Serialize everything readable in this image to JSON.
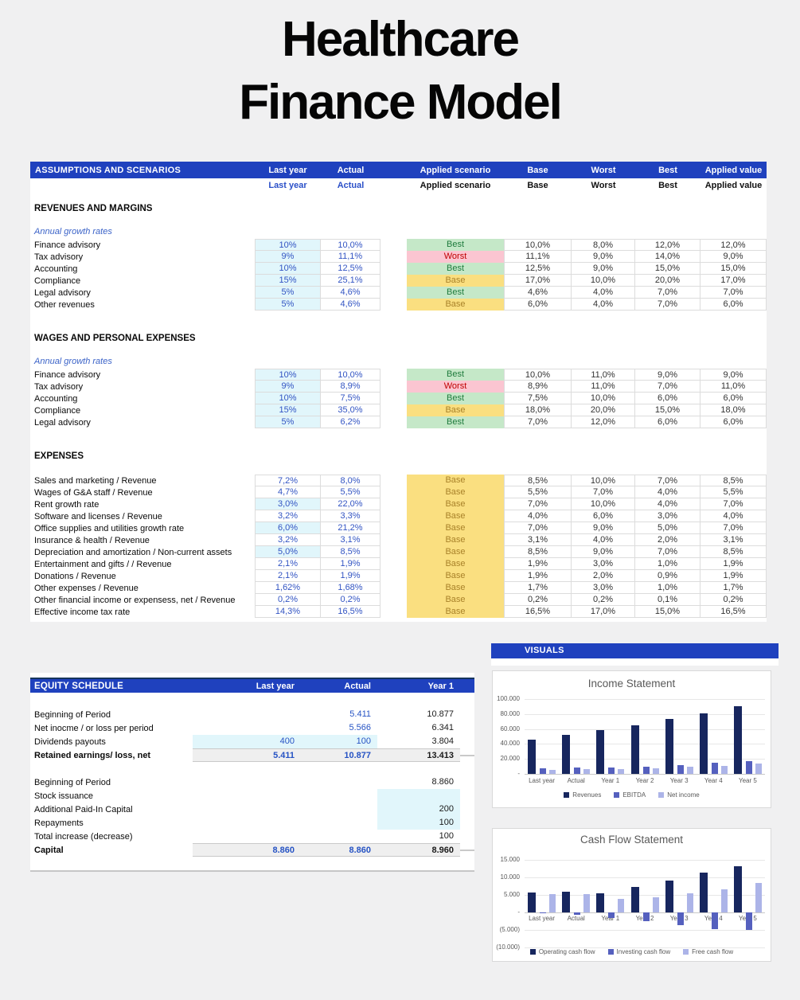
{
  "title": {
    "line1": "Healthcare",
    "line2": "Finance Model"
  },
  "colors": {
    "header_blue": "#1F41BE",
    "accent_navy": "#17365D",
    "input_cyan": "#E1F6FB",
    "value_blue": "#3254C3",
    "best_bg": "#C5E8C8",
    "best_text": "#1F7B3D",
    "worst_bg": "#FBC5D1",
    "worst_text": "#C00000",
    "base_bg": "#FADF80",
    "base_text": "#A98229",
    "series_dark": "#17265E",
    "series_mid": "#5560BE",
    "series_light": "#ACB4E8"
  },
  "assumptions": {
    "header": "ASSUMPTIONS AND SCENARIOS",
    "columns": [
      "Last year",
      "Actual",
      "Applied scenario",
      "Base",
      "Worst",
      "Best",
      "Applied value"
    ],
    "sections": [
      {
        "name": "REVENUES AND MARGINS",
        "subtitle": "Annual growth rates",
        "merged_scenario": false,
        "rows": [
          {
            "label": "Finance advisory",
            "last_year": "10%",
            "actual": "10,0%",
            "scenario": "Best",
            "base": "10,0%",
            "worst": "8,0%",
            "best": "12,0%",
            "applied": "12,0%",
            "input": true
          },
          {
            "label": "Tax advisory",
            "last_year": "9%",
            "actual": "11,1%",
            "scenario": "Worst",
            "base": "11,1%",
            "worst": "9,0%",
            "best": "14,0%",
            "applied": "9,0%",
            "input": true
          },
          {
            "label": "Accounting",
            "last_year": "10%",
            "actual": "12,5%",
            "scenario": "Best",
            "base": "12,5%",
            "worst": "9,0%",
            "best": "15,0%",
            "applied": "15,0%",
            "input": true
          },
          {
            "label": "Compliance",
            "last_year": "15%",
            "actual": "25,1%",
            "scenario": "Base",
            "base": "17,0%",
            "worst": "10,0%",
            "best": "20,0%",
            "applied": "17,0%",
            "input": true
          },
          {
            "label": "Legal advisory",
            "last_year": "5%",
            "actual": "4,6%",
            "scenario": "Best",
            "base": "4,6%",
            "worst": "4,0%",
            "best": "7,0%",
            "applied": "7,0%",
            "input": true
          },
          {
            "label": "Other revenues",
            "last_year": "5%",
            "actual": "4,6%",
            "scenario": "Base",
            "base": "6,0%",
            "worst": "4,0%",
            "best": "7,0%",
            "applied": "6,0%",
            "input": true
          }
        ]
      },
      {
        "name": "WAGES AND PERSONAL EXPENSES",
        "subtitle": "Annual growth rates",
        "merged_scenario": false,
        "rows": [
          {
            "label": "Finance advisory",
            "last_year": "10%",
            "actual": "10,0%",
            "scenario": "Best",
            "base": "10,0%",
            "worst": "11,0%",
            "best": "9,0%",
            "applied": "9,0%",
            "input": true
          },
          {
            "label": "Tax advisory",
            "last_year": "9%",
            "actual": "8,9%",
            "scenario": "Worst",
            "base": "8,9%",
            "worst": "11,0%",
            "best": "7,0%",
            "applied": "11,0%",
            "input": true
          },
          {
            "label": "Accounting",
            "last_year": "10%",
            "actual": "7,5%",
            "scenario": "Best",
            "base": "7,5%",
            "worst": "10,0%",
            "best": "6,0%",
            "applied": "6,0%",
            "input": true
          },
          {
            "label": "Compliance",
            "last_year": "15%",
            "actual": "35,0%",
            "scenario": "Base",
            "base": "18,0%",
            "worst": "20,0%",
            "best": "15,0%",
            "applied": "18,0%",
            "input": true
          },
          {
            "label": "Legal advisory",
            "last_year": "5%",
            "actual": "6,2%",
            "scenario": "Best",
            "base": "7,0%",
            "worst": "12,0%",
            "best": "6,0%",
            "applied": "6,0%",
            "input": true
          }
        ]
      },
      {
        "name": "EXPENSES",
        "subtitle": "",
        "merged_scenario": true,
        "rows": [
          {
            "label": "Sales and marketing / Revenue",
            "last_year": "7,2%",
            "actual": "8,0%",
            "scenario": "Base",
            "base": "8,5%",
            "worst": "10,0%",
            "best": "7,0%",
            "applied": "8,5%",
            "input": false
          },
          {
            "label": "Wages of G&A staff / Revenue",
            "last_year": "4,7%",
            "actual": "5,5%",
            "scenario": "Base",
            "base": "5,5%",
            "worst": "7,0%",
            "best": "4,0%",
            "applied": "5,5%",
            "input": false
          },
          {
            "label": "Rent growth rate",
            "last_year": "3,0%",
            "actual": "22,0%",
            "scenario": "Base",
            "base": "7,0%",
            "worst": "10,0%",
            "best": "4,0%",
            "applied": "7,0%",
            "input": true
          },
          {
            "label": "Software and licenses / Revenue",
            "last_year": "3,2%",
            "actual": "3,3%",
            "scenario": "Base",
            "base": "4,0%",
            "worst": "6,0%",
            "best": "3,0%",
            "applied": "4,0%",
            "input": false
          },
          {
            "label": "Office supplies and utilities growth rate",
            "last_year": "6,0%",
            "actual": "21,2%",
            "scenario": "Base",
            "base": "7,0%",
            "worst": "9,0%",
            "best": "5,0%",
            "applied": "7,0%",
            "input": true
          },
          {
            "label": "Insurance & health / Revenue",
            "last_year": "3,2%",
            "actual": "3,1%",
            "scenario": "Base",
            "base": "3,1%",
            "worst": "4,0%",
            "best": "2,0%",
            "applied": "3,1%",
            "input": false
          },
          {
            "label": "Depreciation and amortization / Non-current assets",
            "last_year": "5,0%",
            "actual": "8,5%",
            "scenario": "Base",
            "base": "8,5%",
            "worst": "9,0%",
            "best": "7,0%",
            "applied": "8,5%",
            "input": true
          },
          {
            "label": "Entertainment and gifts / / Revenue",
            "last_year": "2,1%",
            "actual": "1,9%",
            "scenario": "Base",
            "base": "1,9%",
            "worst": "3,0%",
            "best": "1,0%",
            "applied": "1,9%",
            "input": false
          },
          {
            "label": "Donations / Revenue",
            "last_year": "2,1%",
            "actual": "1,9%",
            "scenario": "Base",
            "base": "1,9%",
            "worst": "2,0%",
            "best": "0,9%",
            "applied": "1,9%",
            "input": false
          },
          {
            "label": "Other expenses / Revenue",
            "last_year": "1,62%",
            "actual": "1,68%",
            "scenario": "Base",
            "base": "1,7%",
            "worst": "3,0%",
            "best": "1,0%",
            "applied": "1,7%",
            "input": false
          },
          {
            "label": "Other financial income or expensess, net / Revenue",
            "last_year": "0,2%",
            "actual": "0,2%",
            "scenario": "Base",
            "base": "0,2%",
            "worst": "0,2%",
            "best": "0,1%",
            "applied": "0,2%",
            "input": false
          },
          {
            "label": "Effective income tax rate",
            "last_year": "14,3%",
            "actual": "16,5%",
            "scenario": "Base",
            "base": "16,5%",
            "worst": "17,0%",
            "best": "15,0%",
            "applied": "16,5%",
            "input": false
          }
        ]
      }
    ]
  },
  "equity": {
    "header": "EQUITY SCHEDULE",
    "columns": [
      "Last year",
      "Actual",
      "Year 1"
    ],
    "rows": [
      {
        "label": "Beginning of Period",
        "last_year": "",
        "actual": "5.411",
        "year1": "10.877"
      },
      {
        "label": "Net inocme / or loss per period",
        "last_year": "",
        "actual": "5.566",
        "year1": "6.341"
      },
      {
        "label": "Dividends payouts",
        "last_year": "400",
        "actual": "100",
        "year1": "3.804",
        "input_cells": [
          "last_year",
          "actual"
        ]
      },
      {
        "label": "Retained earnings/ loss, net",
        "last_year": "5.411",
        "actual": "10.877",
        "year1": "13.413",
        "total": true
      },
      {
        "spacer": true
      },
      {
        "label": "Beginning of Period",
        "last_year": "",
        "actual": "",
        "year1": "8.860"
      },
      {
        "label": "Stock issuance",
        "last_year": "",
        "actual": "",
        "year1": "",
        "input_cells": [
          "year1"
        ]
      },
      {
        "label": "Additional Paid-In Capital",
        "last_year": "",
        "actual": "",
        "year1": "200",
        "input_cells": [
          "year1"
        ]
      },
      {
        "label": "Repayments",
        "last_year": "",
        "actual": "",
        "year1": "100",
        "input_cells": [
          "year1"
        ]
      },
      {
        "label": "Total increase (decrease)",
        "last_year": "",
        "actual": "",
        "year1": "100"
      },
      {
        "label": "Capital",
        "last_year": "8.860",
        "actual": "8.860",
        "year1": "8.960",
        "total": true
      }
    ]
  },
  "visuals_header": "VISUALS",
  "chart_data": [
    {
      "type": "bar",
      "title": "Income Statement",
      "categories": [
        "Last year",
        "Actual",
        "Year 1",
        "Year 2",
        "Year 3",
        "Year 4",
        "Year 5"
      ],
      "series": [
        {
          "name": "Revenues",
          "color": "#17265E",
          "values": [
            46000,
            52000,
            58000,
            65000,
            73000,
            81000,
            90000
          ]
        },
        {
          "name": "EBITDA",
          "color": "#5560BE",
          "values": [
            7000,
            8000,
            9000,
            10000,
            12000,
            14500,
            17000
          ]
        },
        {
          "name": "Net income",
          "color": "#ACB4E8",
          "values": [
            5500,
            6000,
            6500,
            7500,
            10000,
            11000,
            13500
          ]
        }
      ],
      "ylim": [
        0,
        100000
      ],
      "ytick_labels": [
        "100.000",
        "80.000",
        "60.000",
        "40.000",
        "20.000",
        "-"
      ],
      "grid": true,
      "legend_position": "bottom"
    },
    {
      "type": "bar",
      "title": "Cash Flow Statement",
      "categories": [
        "Last year",
        "Actual",
        "Year 1",
        "Year 2",
        "Year 3",
        "Year 4",
        "Year 5"
      ],
      "series": [
        {
          "name": "Operating cash flow",
          "color": "#17265E",
          "values": [
            5700,
            5900,
            5500,
            7200,
            9200,
            11400,
            13100
          ]
        },
        {
          "name": "Investing cash flow",
          "color": "#5560BE",
          "values": [
            -300,
            -600,
            -1600,
            -2600,
            -3700,
            -4800,
            -4900
          ]
        },
        {
          "name": "Free cash flow",
          "color": "#ACB4E8",
          "values": [
            5300,
            5300,
            3900,
            4400,
            5400,
            6500,
            8500
          ]
        }
      ],
      "ylim": [
        -10000,
        15000
      ],
      "ytick_labels": [
        "15.000",
        "10.000",
        "5.000",
        "-",
        "(5.000)",
        "(10.000)"
      ],
      "grid": true,
      "legend_position": "bottom"
    }
  ]
}
